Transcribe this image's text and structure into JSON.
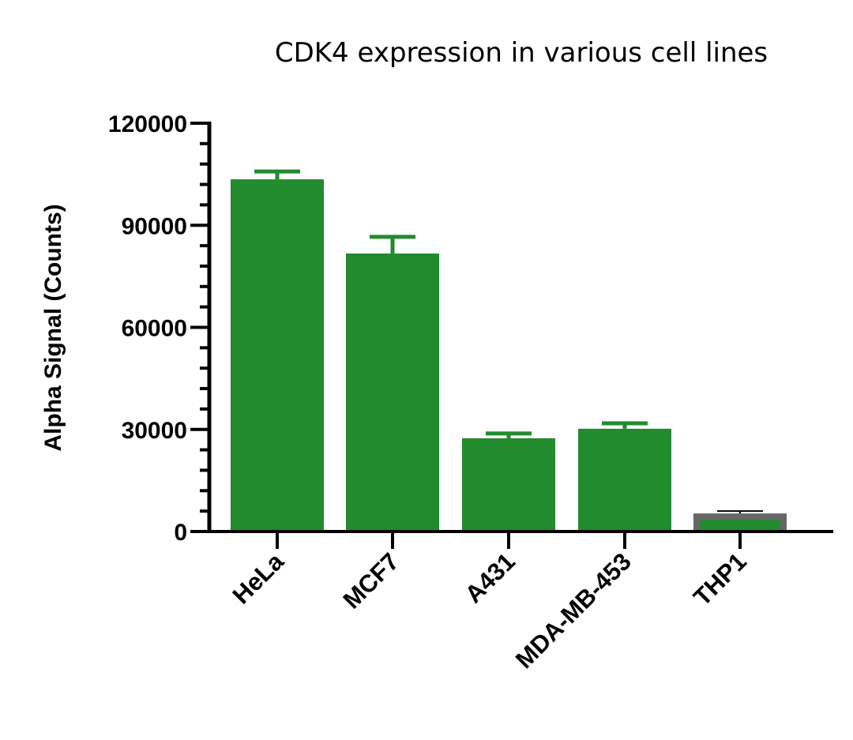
{
  "chart_data": {
    "type": "bar",
    "title": "CDK4 expression in various cell lines",
    "xlabel": "",
    "ylabel": "Alpha Signal (Counts)",
    "ylim": [
      0,
      120000
    ],
    "yticks": [
      0,
      30000,
      60000,
      90000,
      120000
    ],
    "ytick_labels": [
      "0",
      "30000",
      "60000",
      "90000",
      "120000"
    ],
    "minor_ticks_per_major": 5,
    "grid": false,
    "legend": null,
    "categories": [
      "HeLa",
      "MCF7",
      "A431",
      "MDA-MB-453",
      "THP1"
    ],
    "values": [
      103500,
      81700,
      27400,
      30200,
      5300
    ],
    "error_upper": [
      105800,
      86600,
      28800,
      31800,
      6000
    ],
    "colors": [
      "#228B2E",
      "#228B2E",
      "#228B2E",
      "#228B2E",
      "#228B2E"
    ],
    "bar_border_colors": [
      null,
      null,
      null,
      null,
      "#666666"
    ],
    "error_bar_colors": [
      "#228B2E",
      "#228B2E",
      "#228B2E",
      "#228B2E",
      "#000000"
    ]
  },
  "colors": {
    "bar": "#228B2E",
    "thp1_border": "#666666",
    "axis": "#000000"
  }
}
